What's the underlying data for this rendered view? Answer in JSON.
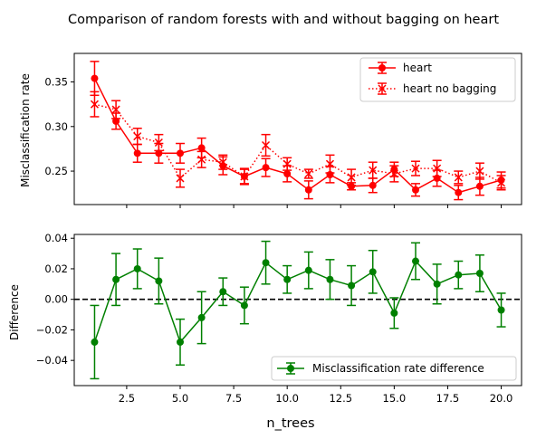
{
  "figure": {
    "title": "Comparison of random forests with and without bagging on heart",
    "xlabel": "n_trees"
  },
  "chart_data": [
    {
      "type": "line",
      "ylabel": "Misclassification rate",
      "xlim": [
        0.05,
        20.95
      ],
      "ylim": [
        0.2125,
        0.382
      ],
      "xticks": [
        2.5,
        5.0,
        7.5,
        10.0,
        12.5,
        15.0,
        17.5,
        20.0
      ],
      "yticks": [
        0.25,
        0.3,
        0.35
      ],
      "ytick_labels": [
        "0.25",
        "0.30",
        "0.35"
      ],
      "show_xtick_labels": false,
      "grid": false,
      "legend": "top-right",
      "x": [
        1,
        2,
        3,
        4,
        5,
        6,
        7,
        8,
        9,
        10,
        11,
        12,
        13,
        14,
        15,
        16,
        17,
        18,
        19,
        20
      ],
      "series": [
        {
          "name": "heart",
          "color": "#ff0000",
          "linestyle": "solid",
          "marker": "circle",
          "values": [
            0.354,
            0.306,
            0.27,
            0.27,
            0.27,
            0.276,
            0.256,
            0.244,
            0.254,
            0.247,
            0.229,
            0.246,
            0.233,
            0.234,
            0.252,
            0.229,
            0.242,
            0.226,
            0.233,
            0.24
          ],
          "errors": [
            0.019,
            0.009,
            0.01,
            0.011,
            0.011,
            0.011,
            0.01,
            0.009,
            0.01,
            0.009,
            0.01,
            0.009,
            0.004,
            0.008,
            0.008,
            0.007,
            0.009,
            0.008,
            0.01,
            0.009
          ]
        },
        {
          "name": "heart no bagging",
          "color": "#ff0000",
          "linestyle": "dotted",
          "marker": "x",
          "values": [
            0.325,
            0.319,
            0.289,
            0.282,
            0.242,
            0.263,
            0.26,
            0.244,
            0.279,
            0.258,
            0.247,
            0.258,
            0.243,
            0.251,
            0.247,
            0.253,
            0.253,
            0.243,
            0.25,
            0.237
          ],
          "errors": [
            0.014,
            0.01,
            0.009,
            0.009,
            0.01,
            0.009,
            0.008,
            0.008,
            0.012,
            0.007,
            0.005,
            0.01,
            0.009,
            0.009,
            0.009,
            0.008,
            0.009,
            0.007,
            0.009,
            0.008
          ]
        }
      ]
    },
    {
      "type": "line",
      "ylabel": "Difference",
      "xlim": [
        0.05,
        20.95
      ],
      "ylim": [
        -0.0565,
        0.0425
      ],
      "xticks": [
        2.5,
        5.0,
        7.5,
        10.0,
        12.5,
        15.0,
        17.5,
        20.0
      ],
      "xtick_labels": [
        "2.5",
        "5.0",
        "7.5",
        "10.0",
        "12.5",
        "15.0",
        "17.5",
        "20.0"
      ],
      "yticks": [
        -0.04,
        -0.02,
        0.0,
        0.02,
        0.04
      ],
      "ytick_labels": [
        "−0.04",
        "−0.02",
        "0.00",
        "0.02",
        "0.04"
      ],
      "grid": false,
      "legend": "bottom-right",
      "reference_line": {
        "y": 0,
        "style": "dashed",
        "color": "#000000"
      },
      "x": [
        1,
        2,
        3,
        4,
        5,
        6,
        7,
        8,
        9,
        10,
        11,
        12,
        13,
        14,
        15,
        16,
        17,
        18,
        19,
        20
      ],
      "series": [
        {
          "name": "Misclassification rate difference",
          "color": "#008000",
          "linestyle": "solid",
          "marker": "circle",
          "values": [
            -0.028,
            0.013,
            0.02,
            0.012,
            -0.028,
            -0.012,
            0.005,
            -0.004,
            0.024,
            0.013,
            0.019,
            0.013,
            0.009,
            0.018,
            -0.009,
            0.025,
            0.01,
            0.016,
            0.017,
            -0.007
          ],
          "errors": [
            0.024,
            0.017,
            0.013,
            0.015,
            0.015,
            0.017,
            0.009,
            0.012,
            0.014,
            0.009,
            0.012,
            0.013,
            0.013,
            0.014,
            0.01,
            0.012,
            0.013,
            0.009,
            0.012,
            0.011
          ]
        }
      ]
    }
  ]
}
